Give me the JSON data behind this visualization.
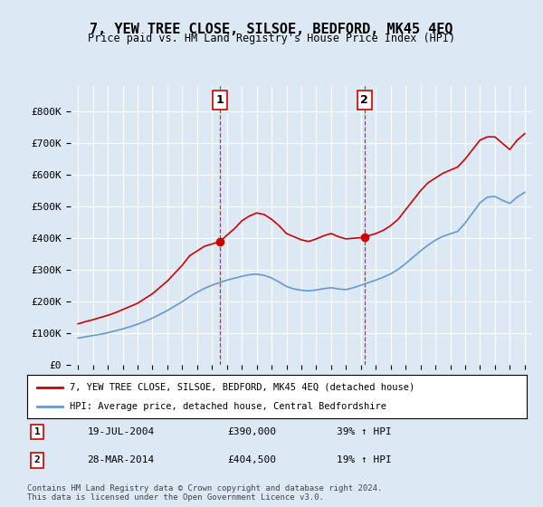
{
  "title": "7, YEW TREE CLOSE, SILSOE, BEDFORD, MK45 4EQ",
  "subtitle": "Price paid vs. HM Land Registry's House Price Index (HPI)",
  "background_color": "#dce9f5",
  "plot_bg_color": "#dce9f5",
  "legend_label_red": "7, YEW TREE CLOSE, SILSOE, BEDFORD, MK45 4EQ (detached house)",
  "legend_label_blue": "HPI: Average price, detached house, Central Bedfordshire",
  "footer": "Contains HM Land Registry data © Crown copyright and database right 2024.\nThis data is licensed under the Open Government Licence v3.0.",
  "marker1_label": "1",
  "marker1_date": "19-JUL-2004",
  "marker1_price": "£390,000",
  "marker1_hpi": "39% ↑ HPI",
  "marker1_x": 2004.54,
  "marker1_y": 390000,
  "marker2_label": "2",
  "marker2_date": "28-MAR-2014",
  "marker2_price": "£404,500",
  "marker2_hpi": "19% ↑ HPI",
  "marker2_x": 2014.24,
  "marker2_y": 404500,
  "red_color": "#cc0000",
  "blue_color": "#6699cc",
  "yticks": [
    0,
    100000,
    200000,
    300000,
    400000,
    500000,
    600000,
    700000,
    800000
  ],
  "ytick_labels": [
    "£0",
    "£100K",
    "£200K",
    "£300K",
    "£400K",
    "£500K",
    "£600K",
    "£700K",
    "£800K"
  ],
  "xmin": 1994.5,
  "xmax": 2025.5,
  "ymin": 0,
  "ymax": 880000,
  "xtick_years": [
    1995,
    1996,
    1997,
    1998,
    1999,
    2000,
    2001,
    2002,
    2003,
    2004,
    2005,
    2006,
    2007,
    2008,
    2009,
    2010,
    2011,
    2012,
    2013,
    2014,
    2015,
    2016,
    2017,
    2018,
    2019,
    2020,
    2021,
    2022,
    2023,
    2024,
    2025
  ],
  "red_x": [
    1995,
    1995.5,
    1996,
    1996.5,
    1997,
    1997.5,
    1998,
    1998.5,
    1999,
    1999.5,
    2000,
    2000.5,
    2001,
    2001.5,
    2002,
    2002.5,
    2003,
    2003.5,
    2004,
    2004.54,
    2005,
    2005.5,
    2006,
    2006.5,
    2007,
    2007.5,
    2008,
    2008.5,
    2009,
    2009.5,
    2010,
    2010.5,
    2011,
    2011.5,
    2012,
    2012.5,
    2013,
    2013.5,
    2014,
    2014.24,
    2015,
    2015.5,
    2016,
    2016.5,
    2017,
    2017.5,
    2018,
    2018.5,
    2019,
    2019.5,
    2020,
    2020.5,
    2021,
    2021.5,
    2022,
    2022.5,
    2023,
    2023.5,
    2024,
    2024.5,
    2025
  ],
  "red_y": [
    130000,
    137000,
    143000,
    150000,
    157000,
    165000,
    175000,
    185000,
    195000,
    210000,
    225000,
    245000,
    265000,
    290000,
    315000,
    345000,
    360000,
    375000,
    382000,
    390000,
    410000,
    430000,
    455000,
    470000,
    480000,
    475000,
    460000,
    440000,
    415000,
    405000,
    395000,
    390000,
    398000,
    408000,
    415000,
    405000,
    398000,
    400000,
    402000,
    404500,
    415000,
    425000,
    440000,
    460000,
    490000,
    520000,
    550000,
    575000,
    590000,
    605000,
    615000,
    625000,
    650000,
    680000,
    710000,
    720000,
    720000,
    700000,
    680000,
    710000,
    730000
  ],
  "blue_x": [
    1995,
    1995.5,
    1996,
    1996.5,
    1997,
    1997.5,
    1998,
    1998.5,
    1999,
    1999.5,
    2000,
    2000.5,
    2001,
    2001.5,
    2002,
    2002.5,
    2003,
    2003.5,
    2004,
    2004.5,
    2005,
    2005.5,
    2006,
    2006.5,
    2007,
    2007.5,
    2008,
    2008.5,
    2009,
    2009.5,
    2010,
    2010.5,
    2011,
    2011.5,
    2012,
    2012.5,
    2013,
    2013.5,
    2014,
    2014.5,
    2015,
    2015.5,
    2016,
    2016.5,
    2017,
    2017.5,
    2018,
    2018.5,
    2019,
    2019.5,
    2020,
    2020.5,
    2021,
    2021.5,
    2022,
    2022.5,
    2023,
    2023.5,
    2024,
    2024.5,
    2025
  ],
  "blue_y": [
    85000,
    89000,
    93000,
    97000,
    102000,
    108000,
    114000,
    121000,
    129000,
    138000,
    148000,
    160000,
    172000,
    186000,
    200000,
    216000,
    230000,
    242000,
    252000,
    260000,
    268000,
    274000,
    280000,
    285000,
    287000,
    283000,
    275000,
    262000,
    248000,
    240000,
    236000,
    234000,
    237000,
    241000,
    244000,
    240000,
    238000,
    244000,
    252000,
    260000,
    268000,
    277000,
    288000,
    302000,
    320000,
    340000,
    360000,
    378000,
    394000,
    406000,
    414000,
    422000,
    448000,
    480000,
    512000,
    530000,
    532000,
    520000,
    510000,
    530000,
    545000
  ]
}
